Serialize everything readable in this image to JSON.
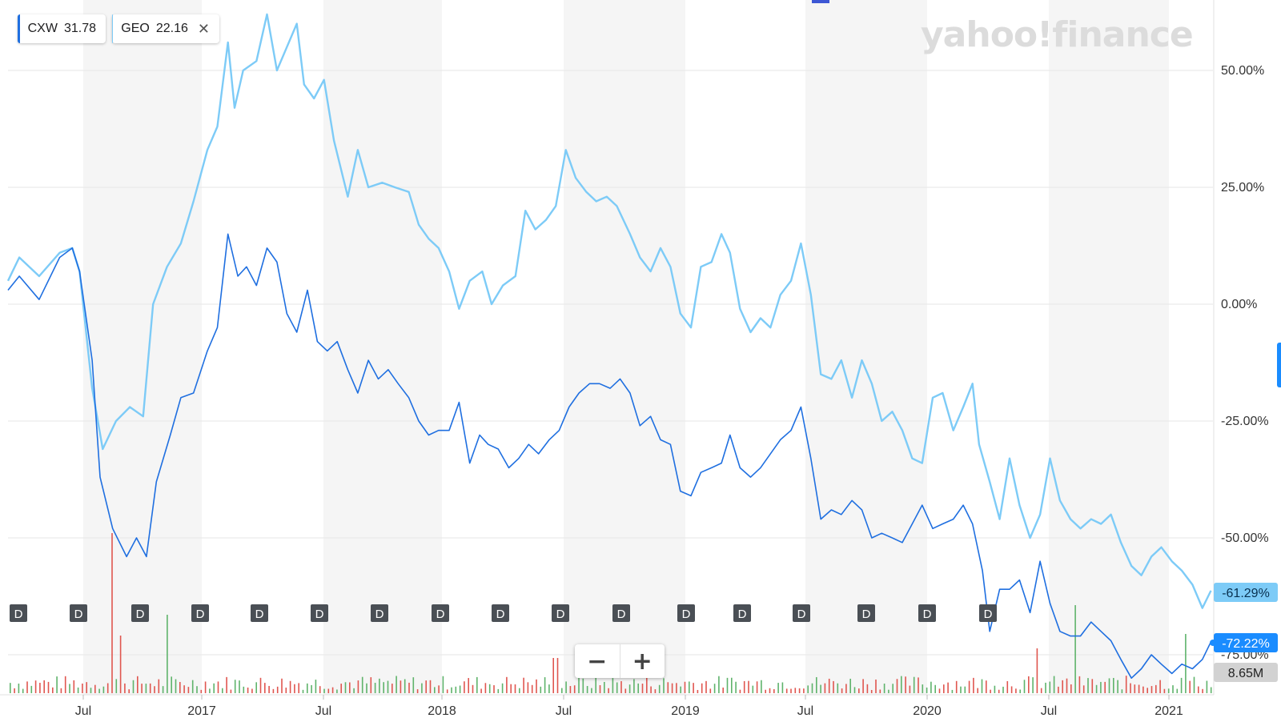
{
  "legend": [
    {
      "symbol": "CXW",
      "price": "31.78",
      "color": "#1f6fe0",
      "closable": false
    },
    {
      "symbol": "GEO",
      "price": "22.16",
      "color": "#7dcbf7",
      "closable": true
    }
  ],
  "watermark": "yahoo!finance",
  "zoom": {
    "minus": "−",
    "plus": "+"
  },
  "last_values": {
    "geo": "-61.29%",
    "cxw": "-72.22%",
    "volume": "8.65M"
  },
  "dividend_marker": "D",
  "chart_data": {
    "type": "line",
    "x_tick_labels": [
      "Jul",
      "2017",
      "Jul",
      "2018",
      "Jul",
      "2019",
      "Jul",
      "2020",
      "Jul",
      "2021"
    ],
    "y_tick_labels": [
      "50.00%",
      "25.00%",
      "0.00%",
      "-25.00%",
      "-50.00%",
      "-75.00%"
    ],
    "y_ticks": [
      50,
      25,
      0,
      -25,
      -50,
      -75
    ],
    "ylim": [
      -80,
      65
    ],
    "x_range": [
      "2016-03",
      "2021-03"
    ],
    "grid": true,
    "series": [
      {
        "name": "GEO",
        "color": "#7dcbf7",
        "unit": "percent_change",
        "points": [
          [
            "2016-03-15",
            5
          ],
          [
            "2016-04-01",
            10
          ],
          [
            "2016-05-01",
            6
          ],
          [
            "2016-06-01",
            11
          ],
          [
            "2016-06-20",
            12
          ],
          [
            "2016-07-01",
            7
          ],
          [
            "2016-07-20",
            -18
          ],
          [
            "2016-08-05",
            -31
          ],
          [
            "2016-08-25",
            -25
          ],
          [
            "2016-09-15",
            -22
          ],
          [
            "2016-10-05",
            -24
          ],
          [
            "2016-10-20",
            0
          ],
          [
            "2016-11-10",
            8
          ],
          [
            "2016-12-01",
            13
          ],
          [
            "2016-12-20",
            22
          ],
          [
            "2017-01-10",
            33
          ],
          [
            "2017-01-25",
            38
          ],
          [
            "2017-02-10",
            56
          ],
          [
            "2017-02-20",
            42
          ],
          [
            "2017-03-05",
            50
          ],
          [
            "2017-03-25",
            52
          ],
          [
            "2017-04-10",
            62
          ],
          [
            "2017-04-25",
            50
          ],
          [
            "2017-05-10",
            55
          ],
          [
            "2017-05-25",
            60
          ],
          [
            "2017-06-05",
            47
          ],
          [
            "2017-06-20",
            44
          ],
          [
            "2017-07-05",
            48
          ],
          [
            "2017-07-20",
            35
          ],
          [
            "2017-08-10",
            23
          ],
          [
            "2017-08-25",
            33
          ],
          [
            "2017-09-10",
            25
          ],
          [
            "2017-10-01",
            26
          ],
          [
            "2017-10-20",
            25
          ],
          [
            "2017-11-10",
            24
          ],
          [
            "2017-11-25",
            17
          ],
          [
            "2017-12-10",
            14
          ],
          [
            "2017-12-25",
            12
          ],
          [
            "2018-01-10",
            7
          ],
          [
            "2018-01-25",
            -1
          ],
          [
            "2018-02-10",
            5
          ],
          [
            "2018-03-01",
            7
          ],
          [
            "2018-03-15",
            0
          ],
          [
            "2018-04-01",
            4
          ],
          [
            "2018-04-20",
            6
          ],
          [
            "2018-05-05",
            20
          ],
          [
            "2018-05-20",
            16
          ],
          [
            "2018-06-05",
            18
          ],
          [
            "2018-06-20",
            21
          ],
          [
            "2018-07-05",
            33
          ],
          [
            "2018-07-20",
            27
          ],
          [
            "2018-08-05",
            24
          ],
          [
            "2018-08-20",
            22
          ],
          [
            "2018-09-05",
            23
          ],
          [
            "2018-09-20",
            21
          ],
          [
            "2018-10-10",
            15
          ],
          [
            "2018-10-25",
            10
          ],
          [
            "2018-11-10",
            7
          ],
          [
            "2018-11-25",
            12
          ],
          [
            "2018-12-10",
            8
          ],
          [
            "2018-12-25",
            -2
          ],
          [
            "2019-01-10",
            -5
          ],
          [
            "2019-01-25",
            8
          ],
          [
            "2019-02-10",
            9
          ],
          [
            "2019-02-25",
            15
          ],
          [
            "2019-03-10",
            11
          ],
          [
            "2019-03-25",
            -1
          ],
          [
            "2019-04-10",
            -6
          ],
          [
            "2019-04-25",
            -3
          ],
          [
            "2019-05-10",
            -5
          ],
          [
            "2019-05-25",
            2
          ],
          [
            "2019-06-10",
            5
          ],
          [
            "2019-06-25",
            13
          ],
          [
            "2019-07-10",
            2
          ],
          [
            "2019-07-25",
            -15
          ],
          [
            "2019-08-10",
            -16
          ],
          [
            "2019-08-25",
            -12
          ],
          [
            "2019-09-10",
            -20
          ],
          [
            "2019-09-25",
            -12
          ],
          [
            "2019-10-10",
            -17
          ],
          [
            "2019-10-25",
            -25
          ],
          [
            "2019-11-10",
            -23
          ],
          [
            "2019-11-25",
            -27
          ],
          [
            "2019-12-10",
            -33
          ],
          [
            "2019-12-25",
            -34
          ],
          [
            "2020-01-10",
            -20
          ],
          [
            "2020-01-25",
            -19
          ],
          [
            "2020-02-10",
            -27
          ],
          [
            "2020-02-25",
            -22
          ],
          [
            "2020-03-10",
            -17
          ],
          [
            "2020-03-20",
            -30
          ],
          [
            "2020-04-05",
            -38
          ],
          [
            "2020-04-20",
            -46
          ],
          [
            "2020-05-05",
            -33
          ],
          [
            "2020-05-20",
            -43
          ],
          [
            "2020-06-05",
            -50
          ],
          [
            "2020-06-20",
            -45
          ],
          [
            "2020-07-05",
            -33
          ],
          [
            "2020-07-20",
            -42
          ],
          [
            "2020-08-05",
            -46
          ],
          [
            "2020-08-20",
            -48
          ],
          [
            "2020-09-05",
            -46
          ],
          [
            "2020-09-20",
            -47
          ],
          [
            "2020-10-05",
            -45
          ],
          [
            "2020-10-20",
            -51
          ],
          [
            "2020-11-05",
            -56
          ],
          [
            "2020-11-20",
            -58
          ],
          [
            "2020-12-05",
            -54
          ],
          [
            "2020-12-20",
            -52
          ],
          [
            "2021-01-05",
            -55
          ],
          [
            "2021-01-20",
            -57
          ],
          [
            "2021-02-05",
            -60
          ],
          [
            "2021-02-20",
            -65
          ],
          [
            "2021-03-05",
            -61.29
          ]
        ]
      },
      {
        "name": "CXW",
        "color": "#1f6fe0",
        "unit": "percent_change",
        "points": [
          [
            "2016-03-15",
            3
          ],
          [
            "2016-04-01",
            6
          ],
          [
            "2016-05-01",
            1
          ],
          [
            "2016-06-01",
            10
          ],
          [
            "2016-06-20",
            12
          ],
          [
            "2016-07-01",
            7
          ],
          [
            "2016-07-20",
            -12
          ],
          [
            "2016-08-01",
            -37
          ],
          [
            "2016-08-20",
            -48
          ],
          [
            "2016-09-10",
            -54
          ],
          [
            "2016-09-25",
            -50
          ],
          [
            "2016-10-10",
            -54
          ],
          [
            "2016-10-25",
            -38
          ],
          [
            "2016-11-15",
            -28
          ],
          [
            "2016-12-01",
            -20
          ],
          [
            "2016-12-20",
            -19
          ],
          [
            "2017-01-10",
            -10
          ],
          [
            "2017-01-25",
            -5
          ],
          [
            "2017-02-10",
            15
          ],
          [
            "2017-02-25",
            6
          ],
          [
            "2017-03-10",
            8
          ],
          [
            "2017-03-25",
            4
          ],
          [
            "2017-04-10",
            12
          ],
          [
            "2017-04-25",
            9
          ],
          [
            "2017-05-10",
            -2
          ],
          [
            "2017-05-25",
            -6
          ],
          [
            "2017-06-10",
            3
          ],
          [
            "2017-06-25",
            -8
          ],
          [
            "2017-07-10",
            -10
          ],
          [
            "2017-07-25",
            -8
          ],
          [
            "2017-08-10",
            -14
          ],
          [
            "2017-08-25",
            -19
          ],
          [
            "2017-09-10",
            -12
          ],
          [
            "2017-09-25",
            -16
          ],
          [
            "2017-10-10",
            -14
          ],
          [
            "2017-10-25",
            -17
          ],
          [
            "2017-11-10",
            -20
          ],
          [
            "2017-11-25",
            -25
          ],
          [
            "2017-12-10",
            -28
          ],
          [
            "2017-12-25",
            -27
          ],
          [
            "2018-01-10",
            -27
          ],
          [
            "2018-01-25",
            -21
          ],
          [
            "2018-02-10",
            -34
          ],
          [
            "2018-02-25",
            -28
          ],
          [
            "2018-03-10",
            -30
          ],
          [
            "2018-03-25",
            -31
          ],
          [
            "2018-04-10",
            -35
          ],
          [
            "2018-04-25",
            -33
          ],
          [
            "2018-05-10",
            -30
          ],
          [
            "2018-05-25",
            -32
          ],
          [
            "2018-06-10",
            -29
          ],
          [
            "2018-06-25",
            -27
          ],
          [
            "2018-07-10",
            -22
          ],
          [
            "2018-07-25",
            -19
          ],
          [
            "2018-08-10",
            -17
          ],
          [
            "2018-08-25",
            -17
          ],
          [
            "2018-09-10",
            -18
          ],
          [
            "2018-09-25",
            -16
          ],
          [
            "2018-10-10",
            -19
          ],
          [
            "2018-10-25",
            -26
          ],
          [
            "2018-11-10",
            -24
          ],
          [
            "2018-11-25",
            -29
          ],
          [
            "2018-12-10",
            -30
          ],
          [
            "2018-12-25",
            -40
          ],
          [
            "2019-01-10",
            -41
          ],
          [
            "2019-01-25",
            -36
          ],
          [
            "2019-02-10",
            -35
          ],
          [
            "2019-02-25",
            -34
          ],
          [
            "2019-03-10",
            -28
          ],
          [
            "2019-03-25",
            -35
          ],
          [
            "2019-04-10",
            -37
          ],
          [
            "2019-04-25",
            -35
          ],
          [
            "2019-05-10",
            -32
          ],
          [
            "2019-05-25",
            -29
          ],
          [
            "2019-06-10",
            -27
          ],
          [
            "2019-06-25",
            -22
          ],
          [
            "2019-07-10",
            -33
          ],
          [
            "2019-07-25",
            -46
          ],
          [
            "2019-08-10",
            -44
          ],
          [
            "2019-08-25",
            -45
          ],
          [
            "2019-09-10",
            -42
          ],
          [
            "2019-09-25",
            -44
          ],
          [
            "2019-10-10",
            -50
          ],
          [
            "2019-10-25",
            -49
          ],
          [
            "2019-11-10",
            -50
          ],
          [
            "2019-11-25",
            -51
          ],
          [
            "2019-12-10",
            -47
          ],
          [
            "2019-12-25",
            -43
          ],
          [
            "2020-01-10",
            -48
          ],
          [
            "2020-01-25",
            -47
          ],
          [
            "2020-02-10",
            -46
          ],
          [
            "2020-02-25",
            -43
          ],
          [
            "2020-03-10",
            -47
          ],
          [
            "2020-03-25",
            -57
          ],
          [
            "2020-04-05",
            -70
          ],
          [
            "2020-04-20",
            -61
          ],
          [
            "2020-05-05",
            -61
          ],
          [
            "2020-05-20",
            -59
          ],
          [
            "2020-06-05",
            -66
          ],
          [
            "2020-06-20",
            -55
          ],
          [
            "2020-07-05",
            -64
          ],
          [
            "2020-07-20",
            -70
          ],
          [
            "2020-08-05",
            -71
          ],
          [
            "2020-08-20",
            -71
          ],
          [
            "2020-09-05",
            -68
          ],
          [
            "2020-09-20",
            -70
          ],
          [
            "2020-10-05",
            -72
          ],
          [
            "2020-10-20",
            -76
          ],
          [
            "2020-11-05",
            -80
          ],
          [
            "2020-11-20",
            -78
          ],
          [
            "2020-12-05",
            -75
          ],
          [
            "2020-12-20",
            -77
          ],
          [
            "2021-01-05",
            -79
          ],
          [
            "2021-01-20",
            -77
          ],
          [
            "2021-02-05",
            -78
          ],
          [
            "2021-02-20",
            -76
          ],
          [
            "2021-03-05",
            -72.22
          ]
        ]
      }
    ],
    "volume_last": "8.65M"
  }
}
